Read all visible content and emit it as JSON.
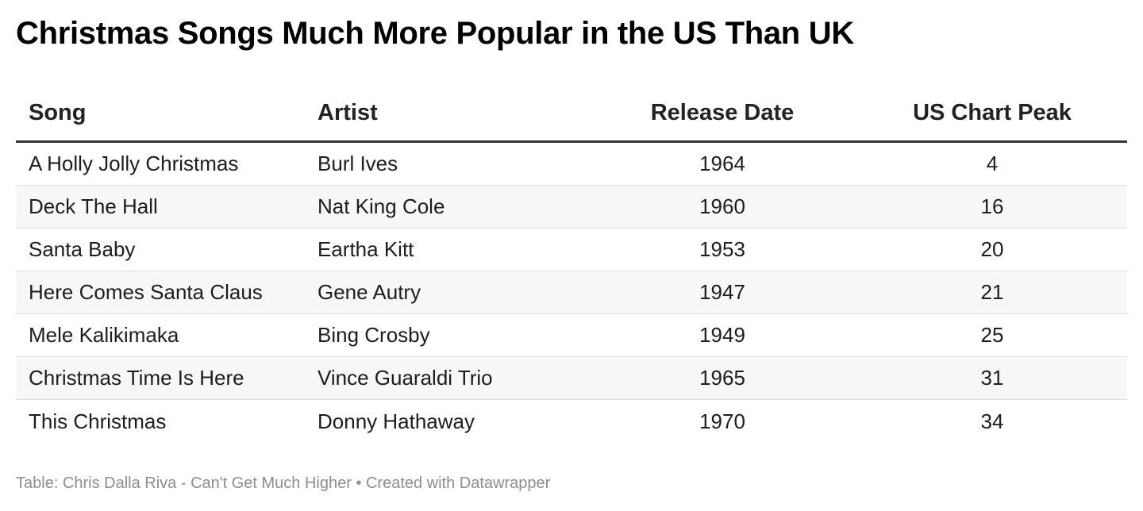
{
  "chart_data": {
    "type": "table",
    "title": "Christmas Songs Much More Popular in the US Than UK",
    "columns": [
      "Song",
      "Artist",
      "Release Date",
      "US Chart Peak"
    ],
    "rows": [
      [
        "A Holly Jolly Christmas",
        "Burl Ives",
        "1964",
        "4"
      ],
      [
        "Deck The Hall",
        "Nat King Cole",
        "1960",
        "16"
      ],
      [
        "Santa Baby",
        "Eartha Kitt",
        "1953",
        "20"
      ],
      [
        "Here Comes Santa Claus",
        "Gene Autry",
        "1947",
        "21"
      ],
      [
        "Mele Kalikimaka",
        "Bing Crosby",
        "1949",
        "25"
      ],
      [
        "Christmas Time Is Here",
        "Vince Guaraldi Trio",
        "1965",
        "31"
      ],
      [
        "This Christmas",
        "Donny Hathaway",
        "1970",
        "34"
      ]
    ],
    "footer": "Table: Chris Dalla Riva - Can't Get Much Higher • Created with Datawrapper"
  }
}
